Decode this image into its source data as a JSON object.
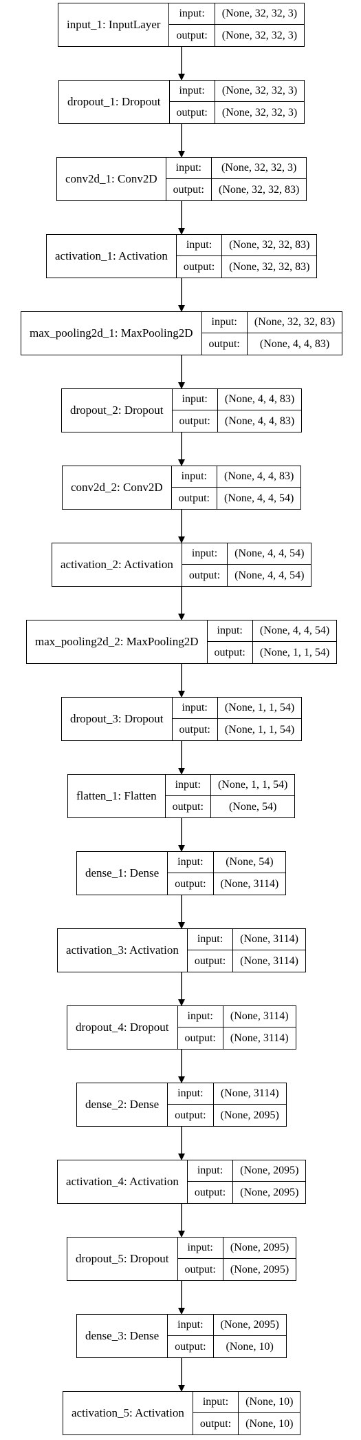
{
  "io_labels": {
    "input": "input:",
    "output": "output:"
  },
  "layers": [
    {
      "name": "input_1: InputLayer",
      "input": "(None, 32, 32, 3)",
      "output": "(None, 32, 32, 3)"
    },
    {
      "name": "dropout_1: Dropout",
      "input": "(None, 32, 32, 3)",
      "output": "(None, 32, 32, 3)"
    },
    {
      "name": "conv2d_1: Conv2D",
      "input": "(None, 32, 32, 3)",
      "output": "(None, 32, 32, 83)"
    },
    {
      "name": "activation_1: Activation",
      "input": "(None, 32, 32, 83)",
      "output": "(None, 32, 32, 83)"
    },
    {
      "name": "max_pooling2d_1: MaxPooling2D",
      "input": "(None, 32, 32, 83)",
      "output": "(None, 4, 4, 83)"
    },
    {
      "name": "dropout_2: Dropout",
      "input": "(None, 4, 4, 83)",
      "output": "(None, 4, 4, 83)"
    },
    {
      "name": "conv2d_2: Conv2D",
      "input": "(None, 4, 4, 83)",
      "output": "(None, 4, 4, 54)"
    },
    {
      "name": "activation_2: Activation",
      "input": "(None, 4, 4, 54)",
      "output": "(None, 4, 4, 54)"
    },
    {
      "name": "max_pooling2d_2: MaxPooling2D",
      "input": "(None, 4, 4, 54)",
      "output": "(None, 1, 1, 54)"
    },
    {
      "name": "dropout_3: Dropout",
      "input": "(None, 1, 1, 54)",
      "output": "(None, 1, 1, 54)"
    },
    {
      "name": "flatten_1: Flatten",
      "input": "(None, 1, 1, 54)",
      "output": "(None, 54)"
    },
    {
      "name": "dense_1: Dense",
      "input": "(None, 54)",
      "output": "(None, 3114)"
    },
    {
      "name": "activation_3: Activation",
      "input": "(None, 3114)",
      "output": "(None, 3114)"
    },
    {
      "name": "dropout_4: Dropout",
      "input": "(None, 3114)",
      "output": "(None, 3114)"
    },
    {
      "name": "dense_2: Dense",
      "input": "(None, 3114)",
      "output": "(None, 2095)"
    },
    {
      "name": "activation_4: Activation",
      "input": "(None, 2095)",
      "output": "(None, 2095)"
    },
    {
      "name": "dropout_5: Dropout",
      "input": "(None, 2095)",
      "output": "(None, 2095)"
    },
    {
      "name": "dense_3: Dense",
      "input": "(None, 2095)",
      "output": "(None, 10)"
    },
    {
      "name": "activation_5: Activation",
      "input": "(None, 10)",
      "output": "(None, 10)"
    }
  ]
}
